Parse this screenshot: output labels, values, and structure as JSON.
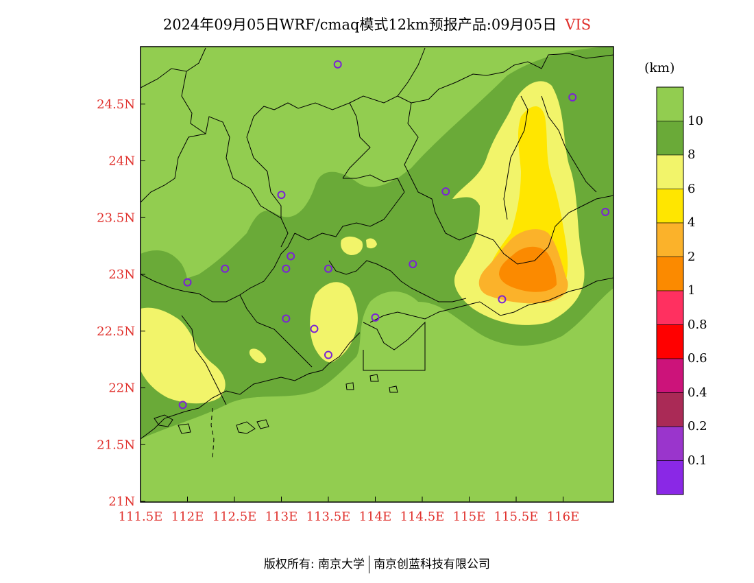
{
  "title": {
    "text": "2024年09月05日WRF/cmaq模式12km预报产品:09月05日",
    "variable": "VIS"
  },
  "colorbar": {
    "unit": "(km)",
    "levels": [
      "10",
      "8",
      "6",
      "4",
      "2",
      "1",
      "0.8",
      "0.6",
      "0.4",
      "0.2",
      "0.1"
    ],
    "colors": [
      "#92cd50",
      "#6aaa38",
      "#f2f46a",
      "#ffe600",
      "#fbb22a",
      "#fb8a00",
      "#ff3060",
      "#ff0000",
      "#cc137a",
      "#aa2a56",
      "#9a35cc",
      "#8a28e6"
    ]
  },
  "axes": {
    "x_ticks": [
      "111.5E",
      "112E",
      "112.5E",
      "113E",
      "113.5E",
      "114E",
      "114.5E",
      "115E",
      "115.5E",
      "116E"
    ],
    "y_ticks": [
      "24.5N",
      "24N",
      "23.5N",
      "23N",
      "22.5N",
      "22N",
      "21.5N",
      "21N"
    ]
  },
  "stations": [
    {
      "lon": 113.6,
      "lat": 24.85
    },
    {
      "lon": 116.1,
      "lat": 24.56
    },
    {
      "lon": 113.0,
      "lat": 23.7
    },
    {
      "lon": 114.75,
      "lat": 23.73
    },
    {
      "lon": 116.45,
      "lat": 23.55
    },
    {
      "lon": 112.4,
      "lat": 23.05
    },
    {
      "lon": 112.0,
      "lat": 22.93
    },
    {
      "lon": 113.05,
      "lat": 23.05
    },
    {
      "lon": 113.1,
      "lat": 23.16
    },
    {
      "lon": 113.5,
      "lat": 23.05
    },
    {
      "lon": 114.4,
      "lat": 23.09
    },
    {
      "lon": 113.05,
      "lat": 22.61
    },
    {
      "lon": 113.35,
      "lat": 22.52
    },
    {
      "lon": 114.0,
      "lat": 22.62
    },
    {
      "lon": 113.5,
      "lat": 22.29
    },
    {
      "lon": 111.95,
      "lat": 21.85
    },
    {
      "lon": 115.35,
      "lat": 22.78
    }
  ],
  "footer": {
    "left": "版权所有: 南京大学",
    "right": "南京创蓝科技有限公司"
  }
}
